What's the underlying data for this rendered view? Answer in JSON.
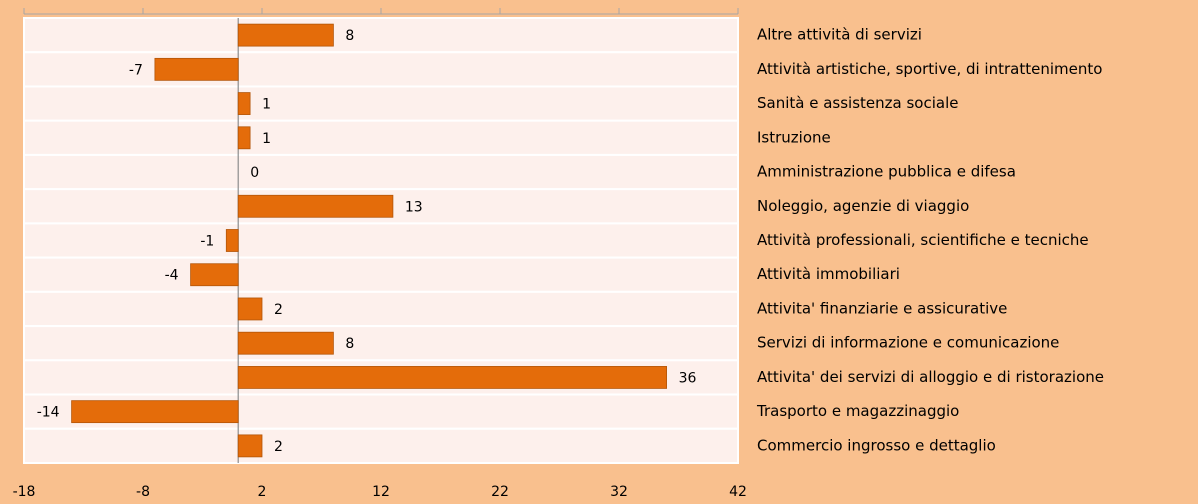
{
  "chart_data": {
    "type": "bar",
    "orientation": "horizontal",
    "categories": [
      "Altre attività di servizi",
      "Attività artistiche, sportive, di intrattenimento",
      "Sanità e assistenza sociale",
      "Istruzione",
      "Amministrazione pubblica e difesa",
      "Noleggio, agenzie di viaggio",
      "Attività professionali, scientifiche e tecniche",
      "Attività immobiliari",
      "Attivita' finanziarie e assicurative",
      "Servizi di informazione e comunicazione",
      "Attivita' dei servizi di alloggio e di ristorazione",
      "Trasporto e magazzinaggio",
      "Commercio ingrosso e dettaglio"
    ],
    "values": [
      8,
      -7,
      1,
      1,
      0,
      13,
      -1,
      -4,
      2,
      8,
      36,
      -14,
      2
    ],
    "color": "#e46c0a",
    "xlim": [
      -18,
      42
    ],
    "xticks": [
      -18,
      -8,
      2,
      12,
      22,
      32,
      42
    ]
  }
}
